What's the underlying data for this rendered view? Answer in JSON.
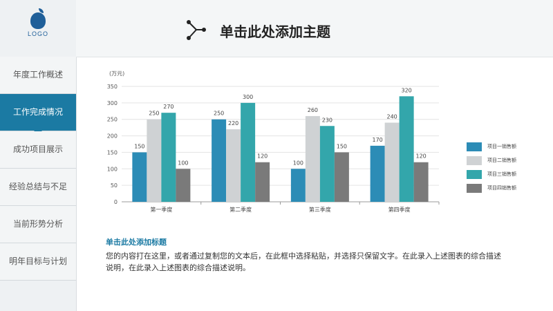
{
  "logo": {
    "text": "LOGO",
    "icon": "apple-logo-icon"
  },
  "sidebar": {
    "items": [
      {
        "label": "年度工作概述",
        "active": false
      },
      {
        "label": "工作完成情况",
        "active": true
      },
      {
        "label": "成功项目展示",
        "active": false
      },
      {
        "label": "经验总结与不足",
        "active": false
      },
      {
        "label": "当前形势分析",
        "active": false
      },
      {
        "label": "明年目标与计划",
        "active": false
      }
    ]
  },
  "header": {
    "title": "单击此处添加主题",
    "icon": "share-icon"
  },
  "chart_data": {
    "type": "bar",
    "unit": "(万元)",
    "categories": [
      "第一季度",
      "第二季度",
      "第三季度",
      "第四季度"
    ],
    "series": [
      {
        "name": "项目一销售额",
        "color": "#2c8cb6",
        "values": [
          150,
          250,
          100,
          170
        ]
      },
      {
        "name": "项目二销售额",
        "color": "#cfd2d4",
        "values": [
          250,
          220,
          260,
          240
        ]
      },
      {
        "name": "项目三销售额",
        "color": "#33a6ab",
        "values": [
          270,
          300,
          230,
          320
        ]
      },
      {
        "name": "项目四销售额",
        "color": "#7a7a7a",
        "values": [
          100,
          120,
          150,
          120
        ]
      }
    ],
    "yticks": [
      0,
      50,
      100,
      150,
      200,
      250,
      300,
      350
    ],
    "ylim": [
      0,
      350
    ],
    "grid": true,
    "legend": "right"
  },
  "description": {
    "title": "单击此处添加标题",
    "text": "您的内容打在这里，或者通过复制您的文本后，在此框中选择粘贴，并选择只保留文字。在此录入上述图表的综合描述说明，在此录入上述图表的综合描述说明。"
  }
}
